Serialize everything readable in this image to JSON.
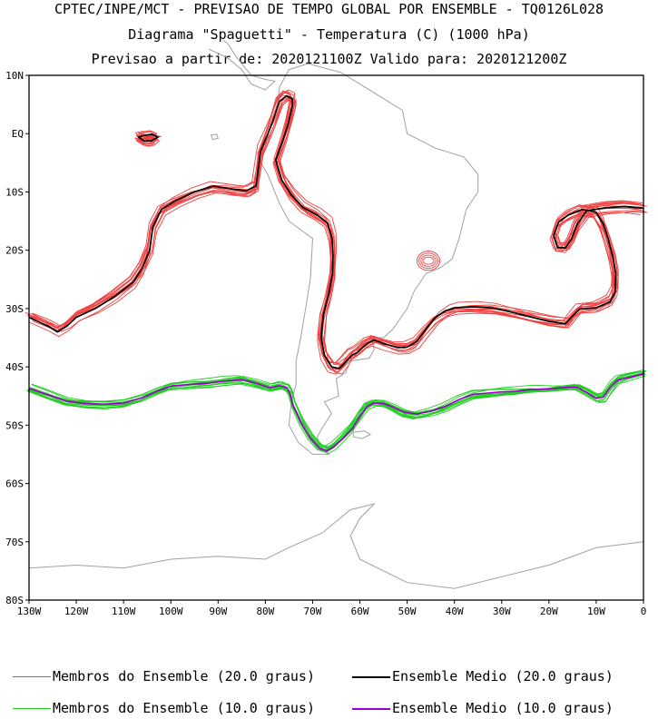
{
  "header": {
    "line1": "CPTEC/INPE/MCT - PREVISAO DE TEMPO GLOBAL POR ENSEMBLE - TQ0126L028",
    "line2": "Diagrama \"Spaguetti\" - Temperatura (C) (1000 hPa)",
    "line3": "Previsao a partir de: 2020121100Z  Valido para: 2020121200Z"
  },
  "colors": {
    "members20": "#f04040",
    "mean20": "#000000",
    "members10": "#22cc22",
    "mean10": "#9900cc",
    "coast": "#a0a0a0",
    "frame": "#000000"
  },
  "legend": [
    {
      "label": "Membros do Ensemble (20.0 graus)",
      "color": "#f04040"
    },
    {
      "label": "Ensemble Medio (20.0 graus)",
      "color": "#000000"
    },
    {
      "label": "Membros do Ensemble (10.0 graus)",
      "color": "#22cc22"
    },
    {
      "label": "Ensemble Medio (10.0 graus)",
      "color": "#9900cc"
    }
  ],
  "chart_data": {
    "type": "line",
    "x_ticks": [
      -130,
      -120,
      -110,
      -100,
      -90,
      -80,
      -70,
      -60,
      -50,
      -40,
      -30,
      -20,
      -10,
      0
    ],
    "x_tick_labels": [
      "130W",
      "120W",
      "110W",
      "100W",
      "90W",
      "80W",
      "70W",
      "60W",
      "50W",
      "40W",
      "30W",
      "20W",
      "10W",
      "0"
    ],
    "y_ticks": [
      10,
      0,
      -10,
      -20,
      -30,
      -40,
      -50,
      -60,
      -70,
      -80
    ],
    "y_tick_labels": [
      "10N",
      "EQ",
      "10S",
      "20S",
      "30S",
      "40S",
      "50S",
      "60S",
      "70S",
      "80S"
    ],
    "xlim": [
      -130,
      0
    ],
    "ylim": [
      -80,
      10
    ],
    "series": [
      {
        "name": "Ensemble Medio (20.0 graus)",
        "members": 12,
        "spread": 0.9,
        "segments": [
          [
            [
              -130,
              -31.5
            ],
            [
              -126,
              -33
            ],
            [
              -124,
              -34
            ],
            [
              -122,
              -33
            ],
            [
              -120,
              -31.5
            ],
            [
              -116,
              -30
            ],
            [
              -112,
              -28
            ],
            [
              -108,
              -25.5
            ],
            [
              -106,
              -23
            ],
            [
              -104.5,
              -20
            ],
            [
              -103.8,
              -16
            ],
            [
              -102,
              -13
            ],
            [
              -99,
              -11.5
            ],
            [
              -95,
              -10
            ],
            [
              -91,
              -9
            ],
            [
              -87,
              -9.5
            ],
            [
              -84,
              -9.8
            ],
            [
              -82,
              -9
            ],
            [
              -81.5,
              -6
            ],
            [
              -81,
              -3
            ],
            [
              -79.7,
              -0.5
            ],
            [
              -78.5,
              2
            ],
            [
              -77,
              5.5
            ],
            [
              -75.5,
              6.5
            ],
            [
              -74.3,
              6
            ],
            [
              -74.3,
              4.8
            ],
            [
              -75.2,
              1.6
            ],
            [
              -76.3,
              -1.2
            ],
            [
              -77.8,
              -4.5
            ],
            [
              -76.5,
              -8
            ],
            [
              -74.5,
              -10.5
            ],
            [
              -72,
              -12.7
            ],
            [
              -69,
              -14
            ],
            [
              -66.8,
              -15.4
            ],
            [
              -65.9,
              -18
            ],
            [
              -65.7,
              -21
            ],
            [
              -65.8,
              -24
            ],
            [
              -66.6,
              -27.5
            ],
            [
              -67.7,
              -31
            ],
            [
              -68.2,
              -35
            ],
            [
              -67.5,
              -38
            ],
            [
              -66,
              -40
            ],
            [
              -64.4,
              -40.3
            ],
            [
              -63,
              -39.2
            ],
            [
              -61.7,
              -38
            ],
            [
              -60.5,
              -37.5
            ],
            [
              -58.5,
              -36
            ],
            [
              -57,
              -35.4
            ],
            [
              -55,
              -36
            ],
            [
              -52,
              -36.7
            ],
            [
              -50,
              -36.6
            ],
            [
              -48,
              -35.7
            ],
            [
              -46,
              -33.5
            ],
            [
              -44,
              -31.5
            ],
            [
              -42,
              -30.4
            ],
            [
              -40,
              -29.9
            ],
            [
              -36,
              -29.7
            ],
            [
              -32,
              -29.9
            ],
            [
              -28,
              -30.6
            ],
            [
              -24,
              -31.4
            ],
            [
              -20,
              -32.2
            ],
            [
              -16.5,
              -32.6
            ],
            [
              -15,
              -31.3
            ],
            [
              -13.5,
              -30.1
            ],
            [
              -10,
              -29.9
            ],
            [
              -7,
              -28.8
            ],
            [
              -6,
              -27.2
            ],
            [
              -5.9,
              -24
            ],
            [
              -6.5,
              -21
            ],
            [
              -7.5,
              -18
            ],
            [
              -8.5,
              -15.5
            ],
            [
              -10,
              -13.5
            ],
            [
              -13,
              -13
            ],
            [
              -16,
              -14
            ],
            [
              -18,
              -15.2
            ],
            [
              -19,
              -17.5
            ],
            [
              -18.2,
              -19.5
            ],
            [
              -16.5,
              -19.6
            ],
            [
              -15.2,
              -18
            ],
            [
              -14,
              -15.5
            ],
            [
              -12,
              -13.2
            ],
            [
              -8,
              -12.7
            ],
            [
              -4,
              -12.5
            ],
            [
              0,
              -12.8
            ]
          ],
          [
            [
              -106.8,
              -0.6
            ],
            [
              -105.6,
              -0.3
            ],
            [
              -104,
              -0.1
            ],
            [
              -102.8,
              -0.6
            ],
            [
              -104,
              -1.2
            ],
            [
              -105.6,
              -1.3
            ],
            [
              -106.8,
              -0.6
            ]
          ]
        ]
      },
      {
        "name": "Ensemble Medio (10.0 graus)",
        "members": 12,
        "spread": 0.6,
        "segments": [
          [
            [
              -130,
              -43.7
            ],
            [
              -126,
              -44.8
            ],
            [
              -122,
              -45.9
            ],
            [
              -118,
              -46.3
            ],
            [
              -114,
              -46.4
            ],
            [
              -110,
              -46.2
            ],
            [
              -106,
              -45.3
            ],
            [
              -103,
              -44.2
            ],
            [
              -100,
              -43.3
            ],
            [
              -96,
              -43
            ],
            [
              -92,
              -42.8
            ],
            [
              -88,
              -42.4
            ],
            [
              -85,
              -42.2
            ],
            [
              -82,
              -42.8
            ],
            [
              -79,
              -43.6
            ],
            [
              -77,
              -43.2
            ],
            [
              -75.5,
              -43.6
            ],
            [
              -74.8,
              -44.5
            ],
            [
              -74.2,
              -46.5
            ],
            [
              -72.5,
              -49.5
            ],
            [
              -70.5,
              -52.2
            ],
            [
              -68.5,
              -54
            ],
            [
              -67,
              -54.4
            ],
            [
              -65.5,
              -53.7
            ],
            [
              -63.5,
              -52.2
            ],
            [
              -61.5,
              -50.5
            ],
            [
              -60,
              -48.5
            ],
            [
              -58.5,
              -46.8
            ],
            [
              -57,
              -46.2
            ],
            [
              -55,
              -46.3
            ],
            [
              -53,
              -46.9
            ],
            [
              -50.5,
              -47.8
            ],
            [
              -48,
              -48.1
            ],
            [
              -45,
              -47.6
            ],
            [
              -42,
              -46.8
            ],
            [
              -39,
              -45.6
            ],
            [
              -36,
              -44.7
            ],
            [
              -33,
              -44.5
            ],
            [
              -30,
              -44.3
            ],
            [
              -27,
              -44.2
            ],
            [
              -24,
              -43.9
            ],
            [
              -20,
              -43.8
            ],
            [
              -16,
              -43.5
            ],
            [
              -14,
              -43.5
            ],
            [
              -12,
              -44.4
            ],
            [
              -10,
              -45.4
            ],
            [
              -8.5,
              -45.2
            ],
            [
              -7,
              -43.5
            ],
            [
              -5.5,
              -42.3
            ],
            [
              -3,
              -41.8
            ],
            [
              0,
              -41.2
            ]
          ]
        ]
      }
    ]
  }
}
